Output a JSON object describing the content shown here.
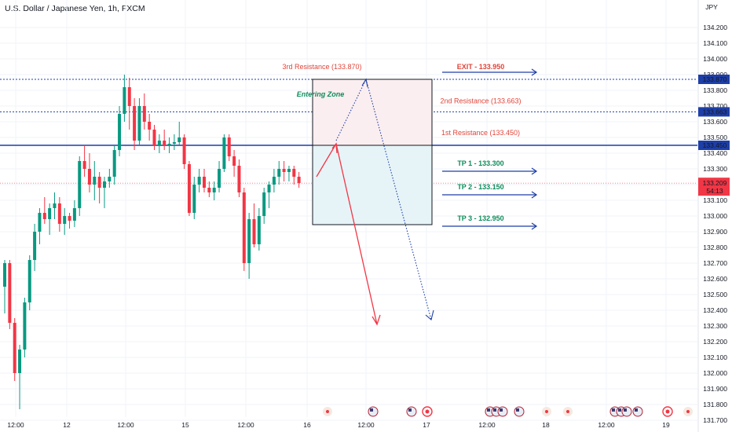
{
  "header": {
    "title": "U.S. Dollar / Japanese Yen, 1h, FXCM"
  },
  "price_axis": {
    "currency": "JPY",
    "last_price": "133.209",
    "countdown": "54:13"
  },
  "colors": {
    "up": "#089981",
    "down": "#f23645",
    "blue": "#1e3fa8",
    "resistance_text": "#e0453a",
    "tp_text": "#0d8c5b",
    "grid": "#f0f3fa"
  },
  "chart_data": {
    "type": "candlestick",
    "ylim": [
      131.68,
      134.52
    ],
    "yticks": [
      "134.200",
      "134.100",
      "134.000",
      "133.900",
      "133.800",
      "133.700",
      "133.600",
      "133.500",
      "133.400",
      "133.300",
      "133.200",
      "133.100",
      "133.000",
      "132.900",
      "132.800",
      "132.700",
      "132.600",
      "132.500",
      "132.400",
      "132.300",
      "132.200",
      "132.100",
      "132.000",
      "131.900",
      "131.800",
      "131.700"
    ],
    "xticks": [
      "12:00",
      "12",
      "12:00",
      "15",
      "12:00",
      "16",
      "12:00",
      "17",
      "12:00",
      "18",
      "12:00",
      "19"
    ],
    "candles": [
      [
        132.55,
        132.72,
        132.38,
        132.7
      ],
      [
        132.7,
        132.72,
        132.28,
        132.32
      ],
      [
        132.32,
        132.35,
        131.95,
        132.0
      ],
      [
        132.0,
        132.18,
        131.77,
        132.15
      ],
      [
        132.15,
        132.48,
        132.1,
        132.45
      ],
      [
        132.45,
        132.75,
        132.4,
        132.72
      ],
      [
        132.72,
        132.95,
        132.65,
        132.9
      ],
      [
        132.9,
        133.05,
        132.82,
        133.02
      ],
      [
        133.02,
        133.12,
        132.95,
        132.98
      ],
      [
        132.98,
        133.08,
        132.88,
        133.05
      ],
      [
        133.05,
        133.15,
        132.98,
        133.08
      ],
      [
        133.08,
        133.12,
        132.9,
        132.95
      ],
      [
        132.95,
        133.05,
        132.88,
        133.0
      ],
      [
        133.0,
        133.02,
        132.92,
        132.97
      ],
      [
        132.97,
        133.1,
        132.93,
        133.05
      ],
      [
        133.05,
        133.38,
        133.0,
        133.35
      ],
      [
        133.35,
        133.45,
        133.25,
        133.3
      ],
      [
        133.3,
        133.4,
        133.15,
        133.2
      ],
      [
        133.2,
        133.35,
        133.1,
        133.25
      ],
      [
        133.25,
        133.28,
        133.08,
        133.18
      ],
      [
        133.18,
        133.25,
        133.05,
        133.22
      ],
      [
        133.22,
        133.3,
        133.18,
        133.25
      ],
      [
        133.25,
        133.45,
        133.2,
        133.42
      ],
      [
        133.42,
        133.7,
        133.38,
        133.65
      ],
      [
        133.65,
        133.9,
        133.6,
        133.82
      ],
      [
        133.82,
        133.88,
        133.55,
        133.7
      ],
      [
        133.7,
        133.75,
        133.42,
        133.48
      ],
      [
        133.48,
        133.75,
        133.45,
        133.7
      ],
      [
        133.7,
        133.78,
        133.55,
        133.6
      ],
      [
        133.6,
        133.65,
        133.48,
        133.55
      ],
      [
        133.55,
        133.58,
        133.42,
        133.45
      ],
      [
        133.45,
        133.52,
        133.4,
        133.48
      ],
      [
        133.48,
        133.55,
        133.42,
        133.45
      ],
      [
        133.45,
        133.5,
        133.4,
        133.46
      ],
      [
        133.46,
        133.52,
        133.42,
        133.47
      ],
      [
        133.47,
        133.6,
        133.45,
        133.5
      ],
      [
        133.5,
        133.52,
        133.3,
        133.33
      ],
      [
        133.33,
        133.35,
        133.0,
        133.02
      ],
      [
        133.02,
        133.25,
        132.98,
        133.2
      ],
      [
        133.2,
        133.3,
        133.15,
        133.25
      ],
      [
        133.25,
        133.3,
        133.15,
        133.18
      ],
      [
        133.18,
        133.22,
        133.12,
        133.15
      ],
      [
        133.15,
        133.22,
        133.1,
        133.18
      ],
      [
        133.18,
        133.35,
        133.15,
        133.3
      ],
      [
        133.3,
        133.52,
        133.28,
        133.5
      ],
      [
        133.5,
        133.52,
        133.35,
        133.38
      ],
      [
        133.38,
        133.42,
        133.25,
        133.32
      ],
      [
        133.32,
        133.36,
        133.12,
        133.15
      ],
      [
        133.15,
        133.18,
        132.65,
        132.7
      ],
      [
        132.7,
        133.02,
        132.6,
        132.98
      ],
      [
        132.98,
        133.08,
        132.8,
        132.82
      ],
      [
        132.82,
        133.05,
        132.78,
        133.0
      ],
      [
        133.0,
        133.18,
        132.95,
        133.15
      ],
      [
        133.15,
        133.22,
        133.05,
        133.2
      ],
      [
        133.2,
        133.3,
        133.15,
        133.25
      ],
      [
        133.25,
        133.35,
        133.2,
        133.3
      ],
      [
        133.3,
        133.35,
        133.22,
        133.28
      ],
      [
        133.28,
        133.32,
        133.22,
        133.3
      ],
      [
        133.3,
        133.32,
        133.2,
        133.25
      ],
      [
        133.25,
        133.28,
        133.18,
        133.21
      ]
    ],
    "levels": [
      {
        "name": "3rd Resistance (133.870)",
        "price": 133.87,
        "label": "133.870"
      },
      {
        "name": "2nd Resistance (133.663)",
        "price": 133.663,
        "label": "133.663"
      },
      {
        "name": "1st Resistance (133.450)",
        "price": 133.45,
        "label": "133.450"
      }
    ],
    "targets": [
      {
        "label": "EXIT - 133.950",
        "price": 133.95
      },
      {
        "label": "TP 1 - 133.300",
        "price": 133.3
      },
      {
        "label": "TP 2 - 133.150",
        "price": 133.15
      },
      {
        "label": "TP 3 - 132.950",
        "price": 132.95
      }
    ],
    "zone_label": "Entering Zone",
    "event_markers": 20
  }
}
